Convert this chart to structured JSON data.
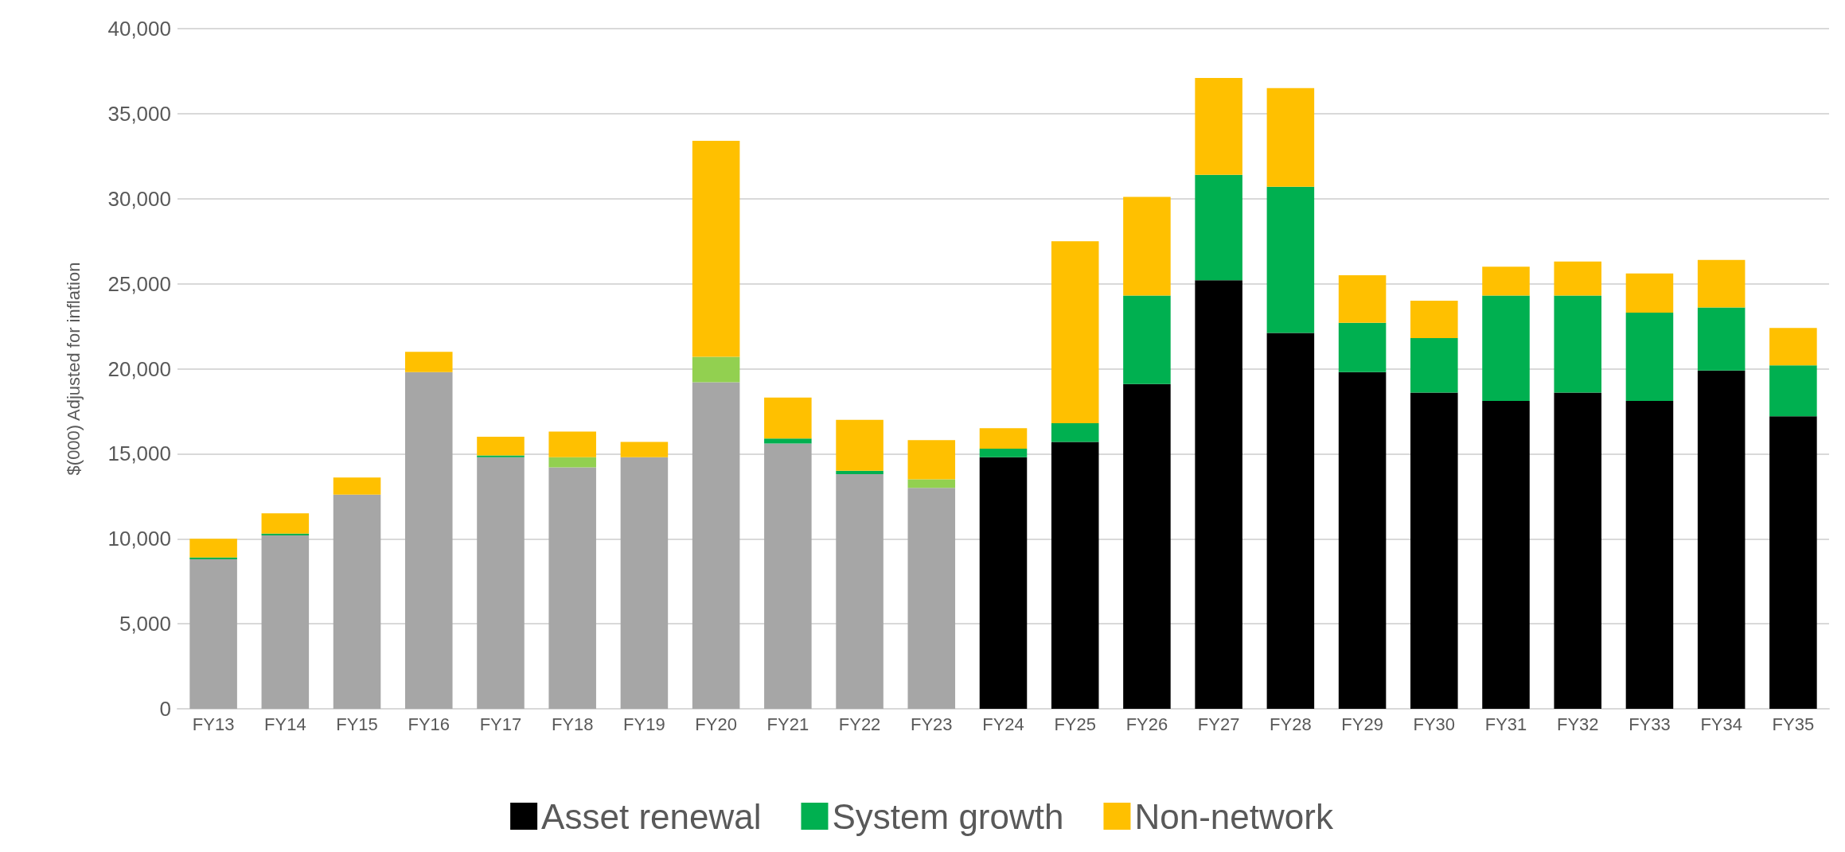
{
  "chart_data": {
    "type": "bar",
    "stacked": true,
    "ylabel": "$(000) Adjusted for inflation",
    "categories": [
      "FY13",
      "FY14",
      "FY15",
      "FY16",
      "FY17",
      "FY18",
      "FY19",
      "FY20",
      "FY21",
      "FY22",
      "FY23",
      "FY24",
      "FY25",
      "FY26",
      "FY27",
      "FY28",
      "FY29",
      "FY30",
      "FY31",
      "FY32",
      "FY33",
      "FY34",
      "FY35"
    ],
    "series": [
      {
        "name": "Asset renewal",
        "color": "#000000",
        "colors": [
          "#a6a6a6",
          "#a6a6a6",
          "#a6a6a6",
          "#a6a6a6",
          "#a6a6a6",
          "#a6a6a6",
          "#a6a6a6",
          "#a6a6a6",
          "#a6a6a6",
          "#a6a6a6",
          "#a6a6a6",
          "#000000",
          "#000000",
          "#000000",
          "#000000",
          "#000000",
          "#000000",
          "#000000",
          "#000000",
          "#000000",
          "#000000",
          "#000000",
          "#000000"
        ],
        "values": [
          8800,
          10200,
          12600,
          19800,
          14800,
          14200,
          14800,
          19200,
          15600,
          13800,
          13000,
          14800,
          15700,
          19100,
          25200,
          22100,
          19800,
          18600,
          18100,
          18600,
          18100,
          19900,
          17200
        ]
      },
      {
        "name": "System growth",
        "color": "#00b050",
        "colors": [
          "#00b050",
          "#00b050",
          "#00b050",
          "#00b050",
          "#00b050",
          "#92d050",
          "#00b050",
          "#92d050",
          "#00b050",
          "#00b050",
          "#92d050",
          "#00b050",
          "#00b050",
          "#00b050",
          "#00b050",
          "#00b050",
          "#00b050",
          "#00b050",
          "#00b050",
          "#00b050",
          "#00b050",
          "#00b050",
          "#00b050"
        ],
        "values": [
          100,
          100,
          0,
          0,
          100,
          600,
          0,
          1500,
          300,
          200,
          500,
          500,
          1100,
          5200,
          6200,
          8600,
          2900,
          3200,
          6200,
          5700,
          5200,
          3700,
          3000
        ]
      },
      {
        "name": "Non-network",
        "color": "#ffc000",
        "values": [
          1100,
          1200,
          1000,
          1200,
          1100,
          1500,
          900,
          12700,
          2400,
          3000,
          2300,
          1200,
          10700,
          5800,
          5700,
          5800,
          2800,
          2200,
          1700,
          2000,
          2300,
          2800,
          2200
        ]
      }
    ],
    "ylim": [
      0,
      40000
    ],
    "yticks": [
      0,
      {
        "value": 5000,
        "label": "5,000"
      },
      {
        "value": 10000,
        "label": "10,000"
      },
      {
        "value": 15000,
        "label": "15,000"
      },
      {
        "value": 20000,
        "label": "20,000"
      },
      {
        "value": 25000,
        "label": "25,000"
      },
      {
        "value": 30000,
        "label": "30,000"
      },
      {
        "value": 35000,
        "label": "35,000"
      },
      {
        "value": 40000,
        "label": "40,000"
      }
    ],
    "grid": "y",
    "legend": "bottom"
  }
}
